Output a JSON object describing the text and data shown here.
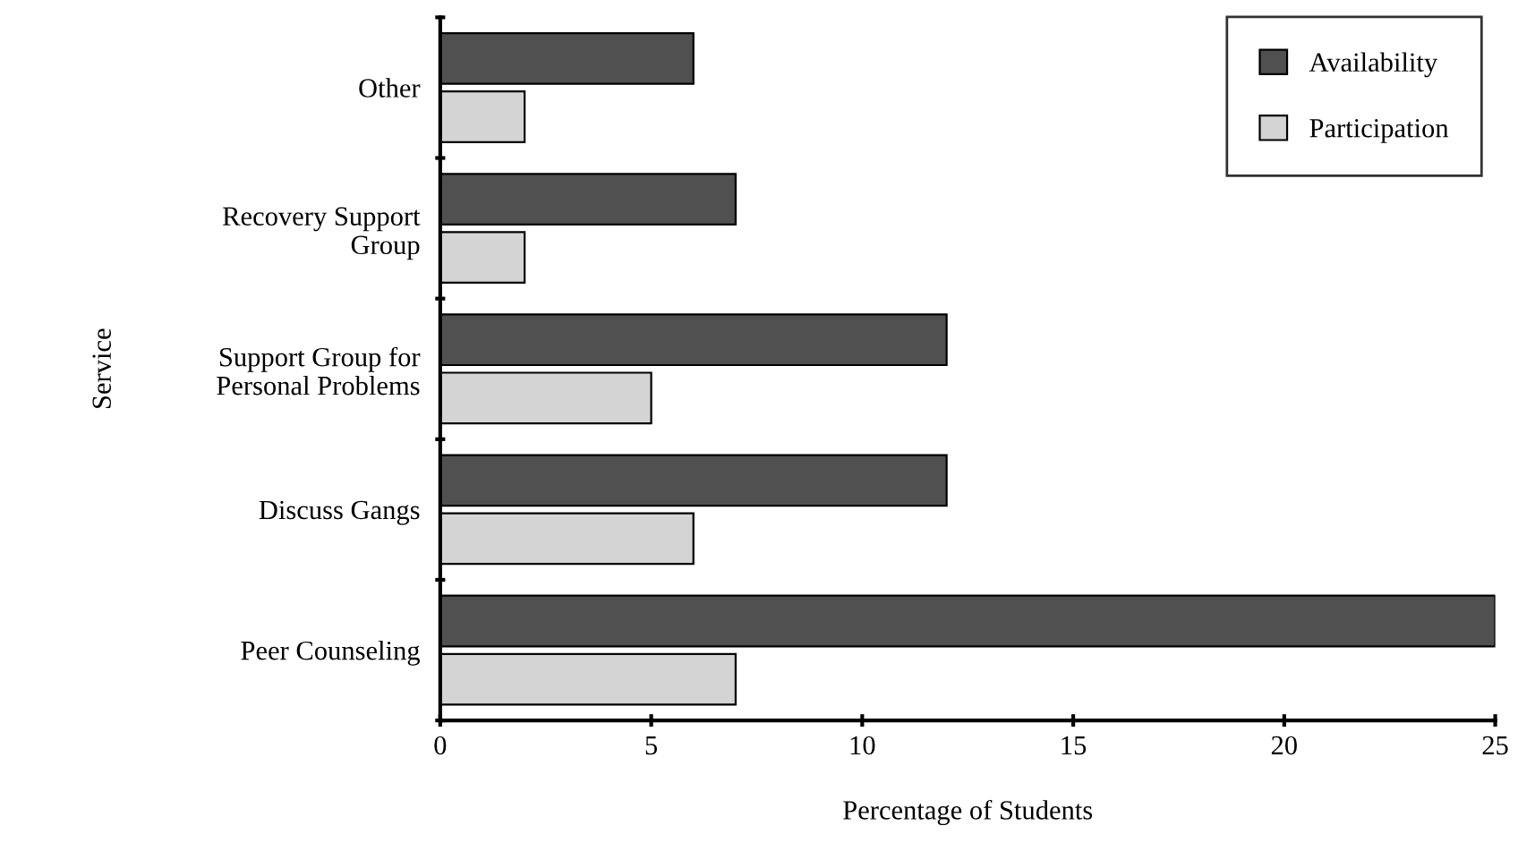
{
  "chart_data": {
    "type": "bar",
    "orientation": "horizontal",
    "xlabel": "Percentage of Students",
    "ylabel": "Service",
    "categories": [
      "Other",
      "Recovery Support\nGroup",
      "Support Group for\nPersonal Problems",
      "Discuss Gangs",
      "Peer Counseling"
    ],
    "series": [
      {
        "name": "Availability",
        "color": "#505050",
        "values": [
          6,
          7,
          12,
          12,
          25
        ]
      },
      {
        "name": "Participation",
        "color": "#d4d4d4",
        "values": [
          2,
          2,
          5,
          6,
          7
        ]
      }
    ],
    "xlim": [
      0,
      25
    ],
    "xticks": [
      0,
      5,
      10,
      15,
      20,
      25
    ],
    "grid": false,
    "legend": "top right"
  }
}
